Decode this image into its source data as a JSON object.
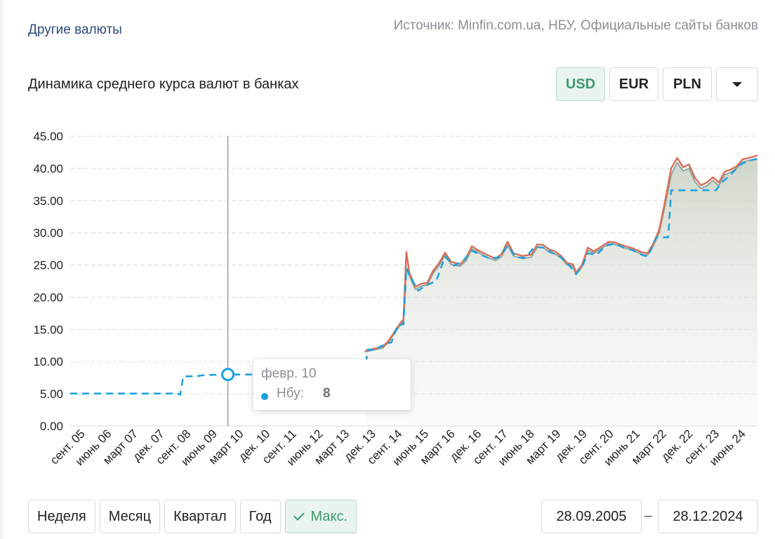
{
  "header": {
    "other_currencies": "Другие валюты",
    "source": "Источник: Minfin.com.ua, НБУ, Официальные сайты банков"
  },
  "chart_title": "Динамика среднего курса валют в банках",
  "currencies": [
    {
      "label": "USD",
      "active": true
    },
    {
      "label": "EUR",
      "active": false
    },
    {
      "label": "PLN",
      "active": false
    }
  ],
  "periods": [
    {
      "label": "Неделя",
      "active": false
    },
    {
      "label": "Месяц",
      "active": false
    },
    {
      "label": "Квартал",
      "active": false
    },
    {
      "label": "Год",
      "active": false
    },
    {
      "label": "Макс.",
      "active": true
    }
  ],
  "date_range": {
    "from": "28.09.2005",
    "separator": "–",
    "to": "28.12.2024"
  },
  "tooltip": {
    "date": "февр. 10",
    "series": "Нбу:",
    "value": "8"
  },
  "colors": {
    "nbu": "#1aa0e0",
    "bank_sell": "#d9705a",
    "bank_buy": "#8aa7a0",
    "grid": "#d6d9dc",
    "active_green": "#3e9a6f"
  },
  "chart_data": {
    "type": "line",
    "x_start": "2005-09",
    "x_end": "2024-12",
    "ylim": [
      0,
      45
    ],
    "yticks": [
      "0.00",
      "5.00",
      "10.00",
      "15.00",
      "20.00",
      "25.00",
      "30.00",
      "35.00",
      "40.00",
      "45.00"
    ],
    "xtick_labels": [
      "сент. 05",
      "июнь 06",
      "март 07",
      "дек. 07",
      "сент. 08",
      "июнь 09",
      "март 10",
      "дек. 10",
      "сент. 11",
      "июнь 12",
      "март 13",
      "дек. 13",
      "сент. 14",
      "июнь 15",
      "март 16",
      "дек. 16",
      "сент. 17",
      "июнь 18",
      "март 19",
      "дек. 19",
      "сент. 20",
      "июнь 21",
      "март 22",
      "дек. 22",
      "сент. 23",
      "июнь 24"
    ],
    "highlight": {
      "x": "2010-02",
      "y": 8
    },
    "series": [
      {
        "name": "Нбу",
        "style": "dashed",
        "points": [
          [
            "2005-09",
            5.05
          ],
          [
            "2008-09",
            5.05
          ],
          [
            "2008-10",
            4.85
          ],
          [
            "2008-11",
            7.7
          ],
          [
            "2009-03",
            7.7
          ],
          [
            "2009-06",
            7.9
          ],
          [
            "2010-02",
            8.0
          ],
          [
            "2011-06",
            8.0
          ],
          [
            "2013-06",
            8.0
          ],
          [
            "2013-12",
            8.0
          ],
          [
            "2014-01",
            11.9
          ],
          [
            "2014-03",
            11.8
          ],
          [
            "2014-06",
            12.5
          ],
          [
            "2014-09",
            13.0
          ],
          [
            "2014-11",
            15.6
          ],
          [
            "2015-01",
            15.8
          ],
          [
            "2015-02",
            24.5
          ],
          [
            "2015-03",
            23.5
          ],
          [
            "2015-06",
            21.0
          ],
          [
            "2015-08",
            21.7
          ],
          [
            "2015-12",
            22.5
          ],
          [
            "2016-03",
            26.3
          ],
          [
            "2016-06",
            24.9
          ],
          [
            "2016-09",
            25.6
          ],
          [
            "2016-12",
            27.2
          ],
          [
            "2017-06",
            26.0
          ],
          [
            "2017-09",
            26.2
          ],
          [
            "2017-12",
            27.9
          ],
          [
            "2018-03",
            26.2
          ],
          [
            "2018-06",
            26.1
          ],
          [
            "2018-09",
            27.8
          ],
          [
            "2018-12",
            27.7
          ],
          [
            "2019-03",
            26.9
          ],
          [
            "2019-06",
            26.2
          ],
          [
            "2019-09",
            24.8
          ],
          [
            "2019-11",
            23.6
          ],
          [
            "2020-01",
            24.7
          ],
          [
            "2020-03",
            26.8
          ],
          [
            "2020-06",
            26.6
          ],
          [
            "2020-09",
            28.0
          ],
          [
            "2020-12",
            28.3
          ],
          [
            "2021-03",
            27.7
          ],
          [
            "2021-06",
            27.3
          ],
          [
            "2021-09",
            26.6
          ],
          [
            "2021-11",
            26.3
          ],
          [
            "2022-01",
            28.1
          ],
          [
            "2022-02",
            29.3
          ],
          [
            "2022-06",
            29.3
          ],
          [
            "2022-07",
            36.6
          ],
          [
            "2023-08",
            36.6
          ],
          [
            "2023-10",
            36.6
          ],
          [
            "2023-12",
            37.8
          ],
          [
            "2024-03",
            39.0
          ],
          [
            "2024-06",
            40.5
          ],
          [
            "2024-09",
            41.2
          ],
          [
            "2024-12",
            41.5
          ]
        ]
      },
      {
        "name": "",
        "style": "solid",
        "points": [
          [
            "2013-12",
            11.6
          ],
          [
            "2014-03",
            12.0
          ],
          [
            "2014-06",
            12.3
          ],
          [
            "2014-08",
            13.2
          ],
          [
            "2014-10",
            14.6
          ],
          [
            "2014-12",
            16.0
          ],
          [
            "2015-01",
            16.5
          ],
          [
            "2015-02",
            27.0
          ],
          [
            "2015-03",
            23.8
          ],
          [
            "2015-05",
            21.6
          ],
          [
            "2015-07",
            22.1
          ],
          [
            "2015-09",
            22.2
          ],
          [
            "2015-11",
            24.1
          ],
          [
            "2016-01",
            25.3
          ],
          [
            "2016-03",
            26.9
          ],
          [
            "2016-05",
            25.5
          ],
          [
            "2016-08",
            25.1
          ],
          [
            "2016-10",
            26.0
          ],
          [
            "2016-12",
            27.9
          ],
          [
            "2017-02",
            27.3
          ],
          [
            "2017-05",
            26.6
          ],
          [
            "2017-08",
            26.0
          ],
          [
            "2017-10",
            26.7
          ],
          [
            "2017-12",
            28.6
          ],
          [
            "2018-02",
            26.8
          ],
          [
            "2018-05",
            26.4
          ],
          [
            "2018-08",
            26.6
          ],
          [
            "2018-10",
            28.2
          ],
          [
            "2018-12",
            28.1
          ],
          [
            "2019-02",
            27.4
          ],
          [
            "2019-04",
            27.1
          ],
          [
            "2019-06",
            26.4
          ],
          [
            "2019-08",
            25.3
          ],
          [
            "2019-10",
            25.1
          ],
          [
            "2019-11",
            23.8
          ],
          [
            "2020-01",
            25.0
          ],
          [
            "2020-03",
            27.7
          ],
          [
            "2020-05",
            27.1
          ],
          [
            "2020-08",
            28.0
          ],
          [
            "2020-10",
            28.6
          ],
          [
            "2020-12",
            28.5
          ],
          [
            "2021-03",
            28.0
          ],
          [
            "2021-06",
            27.6
          ],
          [
            "2021-09",
            27.0
          ],
          [
            "2021-11",
            26.8
          ],
          [
            "2022-01",
            28.3
          ],
          [
            "2022-03",
            30.5
          ],
          [
            "2022-05",
            35.0
          ],
          [
            "2022-07",
            40.0
          ],
          [
            "2022-09",
            41.6
          ],
          [
            "2022-11",
            40.2
          ],
          [
            "2023-01",
            40.6
          ],
          [
            "2023-03",
            38.5
          ],
          [
            "2023-05",
            37.4
          ],
          [
            "2023-07",
            37.8
          ],
          [
            "2023-09",
            38.6
          ],
          [
            "2023-11",
            37.8
          ],
          [
            "2024-01",
            39.5
          ],
          [
            "2024-03",
            39.8
          ],
          [
            "2024-05",
            40.3
          ],
          [
            "2024-07",
            41.4
          ],
          [
            "2024-09",
            41.6
          ],
          [
            "2024-12",
            42.0
          ]
        ]
      },
      {
        "name": "",
        "style": "solid",
        "points": [
          [
            "2013-12",
            11.5
          ],
          [
            "2014-03",
            11.8
          ],
          [
            "2014-06",
            12.1
          ],
          [
            "2014-08",
            13.0
          ],
          [
            "2014-10",
            14.4
          ],
          [
            "2014-12",
            15.7
          ],
          [
            "2015-01",
            16.2
          ],
          [
            "2015-02",
            24.5
          ],
          [
            "2015-03",
            23.3
          ],
          [
            "2015-05",
            21.2
          ],
          [
            "2015-07",
            21.7
          ],
          [
            "2015-09",
            21.9
          ],
          [
            "2015-11",
            23.7
          ],
          [
            "2016-01",
            24.9
          ],
          [
            "2016-03",
            26.5
          ],
          [
            "2016-05",
            25.1
          ],
          [
            "2016-08",
            24.8
          ],
          [
            "2016-10",
            25.6
          ],
          [
            "2016-12",
            27.5
          ],
          [
            "2017-02",
            27.0
          ],
          [
            "2017-05",
            26.2
          ],
          [
            "2017-08",
            25.7
          ],
          [
            "2017-10",
            26.3
          ],
          [
            "2017-12",
            28.1
          ],
          [
            "2018-02",
            26.4
          ],
          [
            "2018-05",
            26.0
          ],
          [
            "2018-08",
            26.2
          ],
          [
            "2018-10",
            27.8
          ],
          [
            "2018-12",
            27.7
          ],
          [
            "2019-02",
            27.0
          ],
          [
            "2019-04",
            26.7
          ],
          [
            "2019-06",
            26.1
          ],
          [
            "2019-08",
            25.0
          ],
          [
            "2019-10",
            24.8
          ],
          [
            "2019-11",
            23.5
          ],
          [
            "2020-01",
            24.7
          ],
          [
            "2020-03",
            27.3
          ],
          [
            "2020-05",
            26.8
          ],
          [
            "2020-08",
            27.7
          ],
          [
            "2020-10",
            28.3
          ],
          [
            "2020-12",
            28.2
          ],
          [
            "2021-03",
            27.7
          ],
          [
            "2021-06",
            27.3
          ],
          [
            "2021-09",
            26.7
          ],
          [
            "2021-11",
            26.5
          ],
          [
            "2022-01",
            28.0
          ],
          [
            "2022-03",
            30.0
          ],
          [
            "2022-05",
            34.3
          ],
          [
            "2022-07",
            39.0
          ],
          [
            "2022-09",
            40.9
          ],
          [
            "2022-11",
            39.6
          ],
          [
            "2023-01",
            40.0
          ],
          [
            "2023-03",
            37.9
          ],
          [
            "2023-05",
            36.9
          ],
          [
            "2023-07",
            37.3
          ],
          [
            "2023-09",
            38.1
          ],
          [
            "2023-11",
            37.3
          ],
          [
            "2024-01",
            39.0
          ],
          [
            "2024-03",
            39.4
          ],
          [
            "2024-05",
            40.0
          ],
          [
            "2024-07",
            41.0
          ],
          [
            "2024-09",
            41.2
          ],
          [
            "2024-12",
            41.4
          ]
        ]
      }
    ]
  }
}
